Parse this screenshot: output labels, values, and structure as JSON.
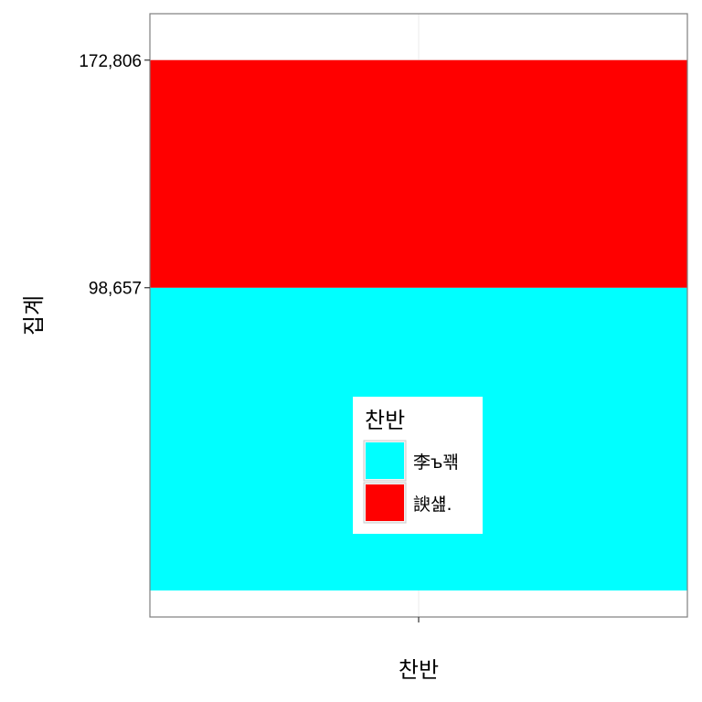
{
  "chart_data": {
    "type": "bar",
    "stacked": true,
    "orientation": "vertical",
    "xlabel": "찬반",
    "ylabel": "집계",
    "categories": [
      ""
    ],
    "series": [
      {
        "name": "李ъ꽦",
        "values": [
          98657
        ],
        "color": "#00ffff"
      },
      {
        "name": "諛섎.",
        "values": [
          74149
        ],
        "color": "#ff0000"
      }
    ],
    "y_ticks": [
      {
        "value": 98657,
        "label": "98,657"
      },
      {
        "value": 172806,
        "label": "172,806"
      }
    ],
    "ylim": [
      -8640,
      187930
    ],
    "legend": {
      "title": "찬반",
      "placement": "inside-bottom-center",
      "entries": [
        {
          "label": "李ъ꽦",
          "color": "#00ffff"
        },
        {
          "label": "諛섎.",
          "color": "#ff0000"
        }
      ]
    },
    "grid": true,
    "colors": {
      "panel_border": "#7f7f7f",
      "grid": "#ebebeb",
      "axis": "#333333"
    }
  }
}
